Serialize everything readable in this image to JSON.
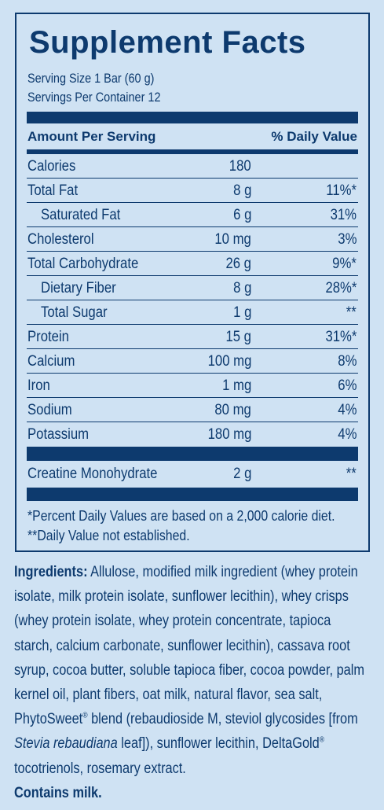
{
  "title": "Supplement Facts",
  "serving_size": "Serving Size 1 Bar (60 g)",
  "servings_per_container": "Servings Per Container 12",
  "header": {
    "amount_per_serving": "Amount Per Serving",
    "daily_value": "% Daily Value"
  },
  "nutrients": [
    {
      "name": "Calories",
      "amount": "180",
      "dv": ""
    },
    {
      "name": "Total Fat",
      "amount": "8 g",
      "dv": "11%*"
    },
    {
      "name": "Saturated Fat",
      "amount": "6 g",
      "dv": "31%"
    },
    {
      "name": "Cholesterol",
      "amount": "10 mg",
      "dv": "3%"
    },
    {
      "name": "Total Carbohydrate",
      "amount": "26 g",
      "dv": "9%*"
    },
    {
      "name": "Dietary Fiber",
      "amount": "8 g",
      "dv": "28%*"
    },
    {
      "name": "Total Sugar",
      "amount": "1 g",
      "dv": "**"
    },
    {
      "name": "Protein",
      "amount": "15 g",
      "dv": "31%*"
    },
    {
      "name": "Calcium",
      "amount": "100 mg",
      "dv": "8%"
    },
    {
      "name": "Iron",
      "amount": "1 mg",
      "dv": "6%"
    },
    {
      "name": "Sodium",
      "amount": "80 mg",
      "dv": "4%"
    },
    {
      "name": "Potassium",
      "amount": "180 mg",
      "dv": "4%"
    }
  ],
  "other": {
    "name": "Creatine Monohydrate",
    "amount": "2 g",
    "dv": "**"
  },
  "footnotes": {
    "percent_note": "*Percent Daily Values are based on a 2,000 calorie diet.",
    "dv_note": "**Daily Value not established."
  },
  "ingredients": {
    "label": "Ingredients:",
    "text_1": " Allulose, modified milk ingredient (whey protein isolate, milk protein isolate, sunflower lecithin), whey crisps (whey protein isolate, whey protein concentrate, tapioca starch, calcium carbonate, sunflower lecithin), cassava root syrup, cocoa butter, soluble tapioca fiber, cocoa powder, palm kernel oil, plant fibers, oat milk, natural flavor, sea salt, PhytoSweet",
    "reg_mark": "®",
    "text_2": " blend (rebaudioside M, steviol glycosides [from ",
    "italic": "Stevia rebaudiana",
    "text_3": " leaf]), sunflower lecithin, DeltaGold",
    "text_4": " tocotrienols, rosemary extract."
  },
  "contains": "Contains milk."
}
